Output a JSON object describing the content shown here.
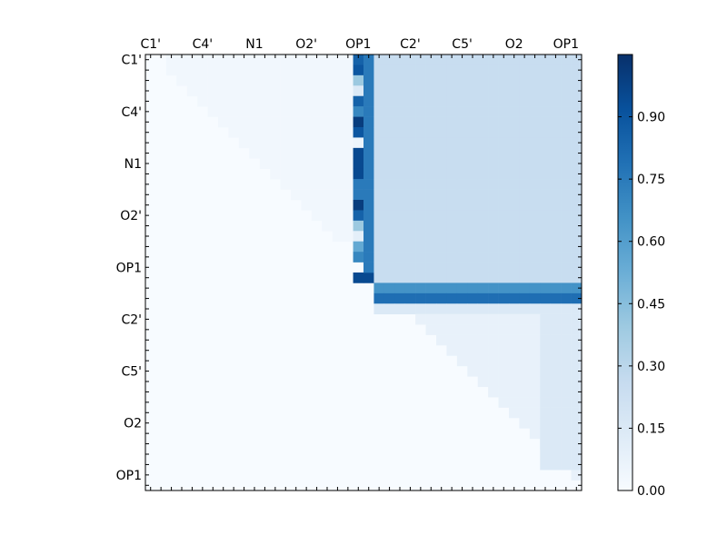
{
  "chart_data": {
    "type": "heatmap",
    "title": "",
    "xlabel": "",
    "ylabel": "",
    "size": 42,
    "tick_positions": [
      0,
      5,
      10,
      15,
      20,
      25,
      30,
      35,
      40
    ],
    "x_tick_labels": [
      "C1'",
      "C4'",
      "N1",
      "O2'",
      "OP1",
      "C2'",
      "C5'",
      "O2",
      "OP1"
    ],
    "y_tick_labels": [
      "C1'",
      "C4'",
      "N1",
      "O2'",
      "OP1",
      "C2'",
      "C5'",
      "O2",
      "OP1"
    ],
    "x_ticks_position": "top",
    "colorbar": {
      "range": [
        0.0,
        1.05
      ],
      "ticks": [
        0.0,
        0.15,
        0.3,
        0.45,
        0.6,
        0.75,
        0.9
      ],
      "tick_labels": [
        "0.00",
        "0.15",
        "0.30",
        "0.45",
        "0.60",
        "0.75",
        "0.90"
      ],
      "colormap": "Blues",
      "low_color": "#f7fbff",
      "high_color": "#08306b"
    },
    "grid": false,
    "approximate_cells": [
      {
        "rows": [
          0,
          18
        ],
        "cols": [
          2,
          20
        ],
        "band": "upper",
        "value": 0.03
      },
      {
        "rows": [
          0,
          1
        ],
        "cols": [
          20,
          21
        ],
        "value": 0.85
      },
      {
        "rows": [
          1,
          2
        ],
        "cols": [
          20,
          21
        ],
        "value": 0.9
      },
      {
        "rows": [
          2,
          3
        ],
        "cols": [
          20,
          21
        ],
        "value": 0.4
      },
      {
        "rows": [
          3,
          4
        ],
        "cols": [
          20,
          21
        ],
        "value": 0.15
      },
      {
        "rows": [
          4,
          5
        ],
        "cols": [
          20,
          21
        ],
        "value": 0.85
      },
      {
        "rows": [
          5,
          6
        ],
        "cols": [
          20,
          21
        ],
        "value": 0.7
      },
      {
        "rows": [
          6,
          7
        ],
        "cols": [
          20,
          21
        ],
        "value": 1.0
      },
      {
        "rows": [
          7,
          8
        ],
        "cols": [
          20,
          21
        ],
        "value": 0.9
      },
      {
        "rows": [
          8,
          9
        ],
        "cols": [
          20,
          21
        ],
        "value": 0.05
      },
      {
        "rows": [
          9,
          12
        ],
        "cols": [
          20,
          21
        ],
        "value": 0.95
      },
      {
        "rows": [
          12,
          14
        ],
        "cols": [
          20,
          21
        ],
        "value": 0.75
      },
      {
        "rows": [
          14,
          15
        ],
        "cols": [
          20,
          21
        ],
        "value": 1.0
      },
      {
        "rows": [
          15,
          16
        ],
        "cols": [
          20,
          21
        ],
        "value": 0.85
      },
      {
        "rows": [
          16,
          17
        ],
        "cols": [
          20,
          21
        ],
        "value": 0.4
      },
      {
        "rows": [
          17,
          18
        ],
        "cols": [
          20,
          21
        ],
        "value": 0.1
      },
      {
        "rows": [
          18,
          19
        ],
        "cols": [
          20,
          21
        ],
        "value": 0.55
      },
      {
        "rows": [
          19,
          20
        ],
        "cols": [
          20,
          21
        ],
        "value": 0.7
      },
      {
        "rows": [
          21,
          22
        ],
        "cols": [
          20,
          22
        ],
        "value": 0.95
      },
      {
        "rows": [
          0,
          21
        ],
        "cols": [
          21,
          22
        ],
        "value": 0.75
      },
      {
        "rows": [
          0,
          22
        ],
        "cols": [
          22,
          42
        ],
        "value": 0.25
      },
      {
        "rows": [
          22,
          23
        ],
        "cols": [
          22,
          42
        ],
        "value": 0.65
      },
      {
        "rows": [
          23,
          24
        ],
        "cols": [
          22,
          42
        ],
        "value": 0.8
      },
      {
        "rows": [
          24,
          25
        ],
        "cols": [
          22,
          42
        ],
        "value": 0.15
      },
      {
        "rows": [
          25,
          42
        ],
        "cols": [
          23,
          42
        ],
        "band": "upper",
        "value": 0.08
      },
      {
        "rows": [
          25,
          40
        ],
        "cols": [
          38,
          42
        ],
        "value": 0.15
      }
    ]
  }
}
